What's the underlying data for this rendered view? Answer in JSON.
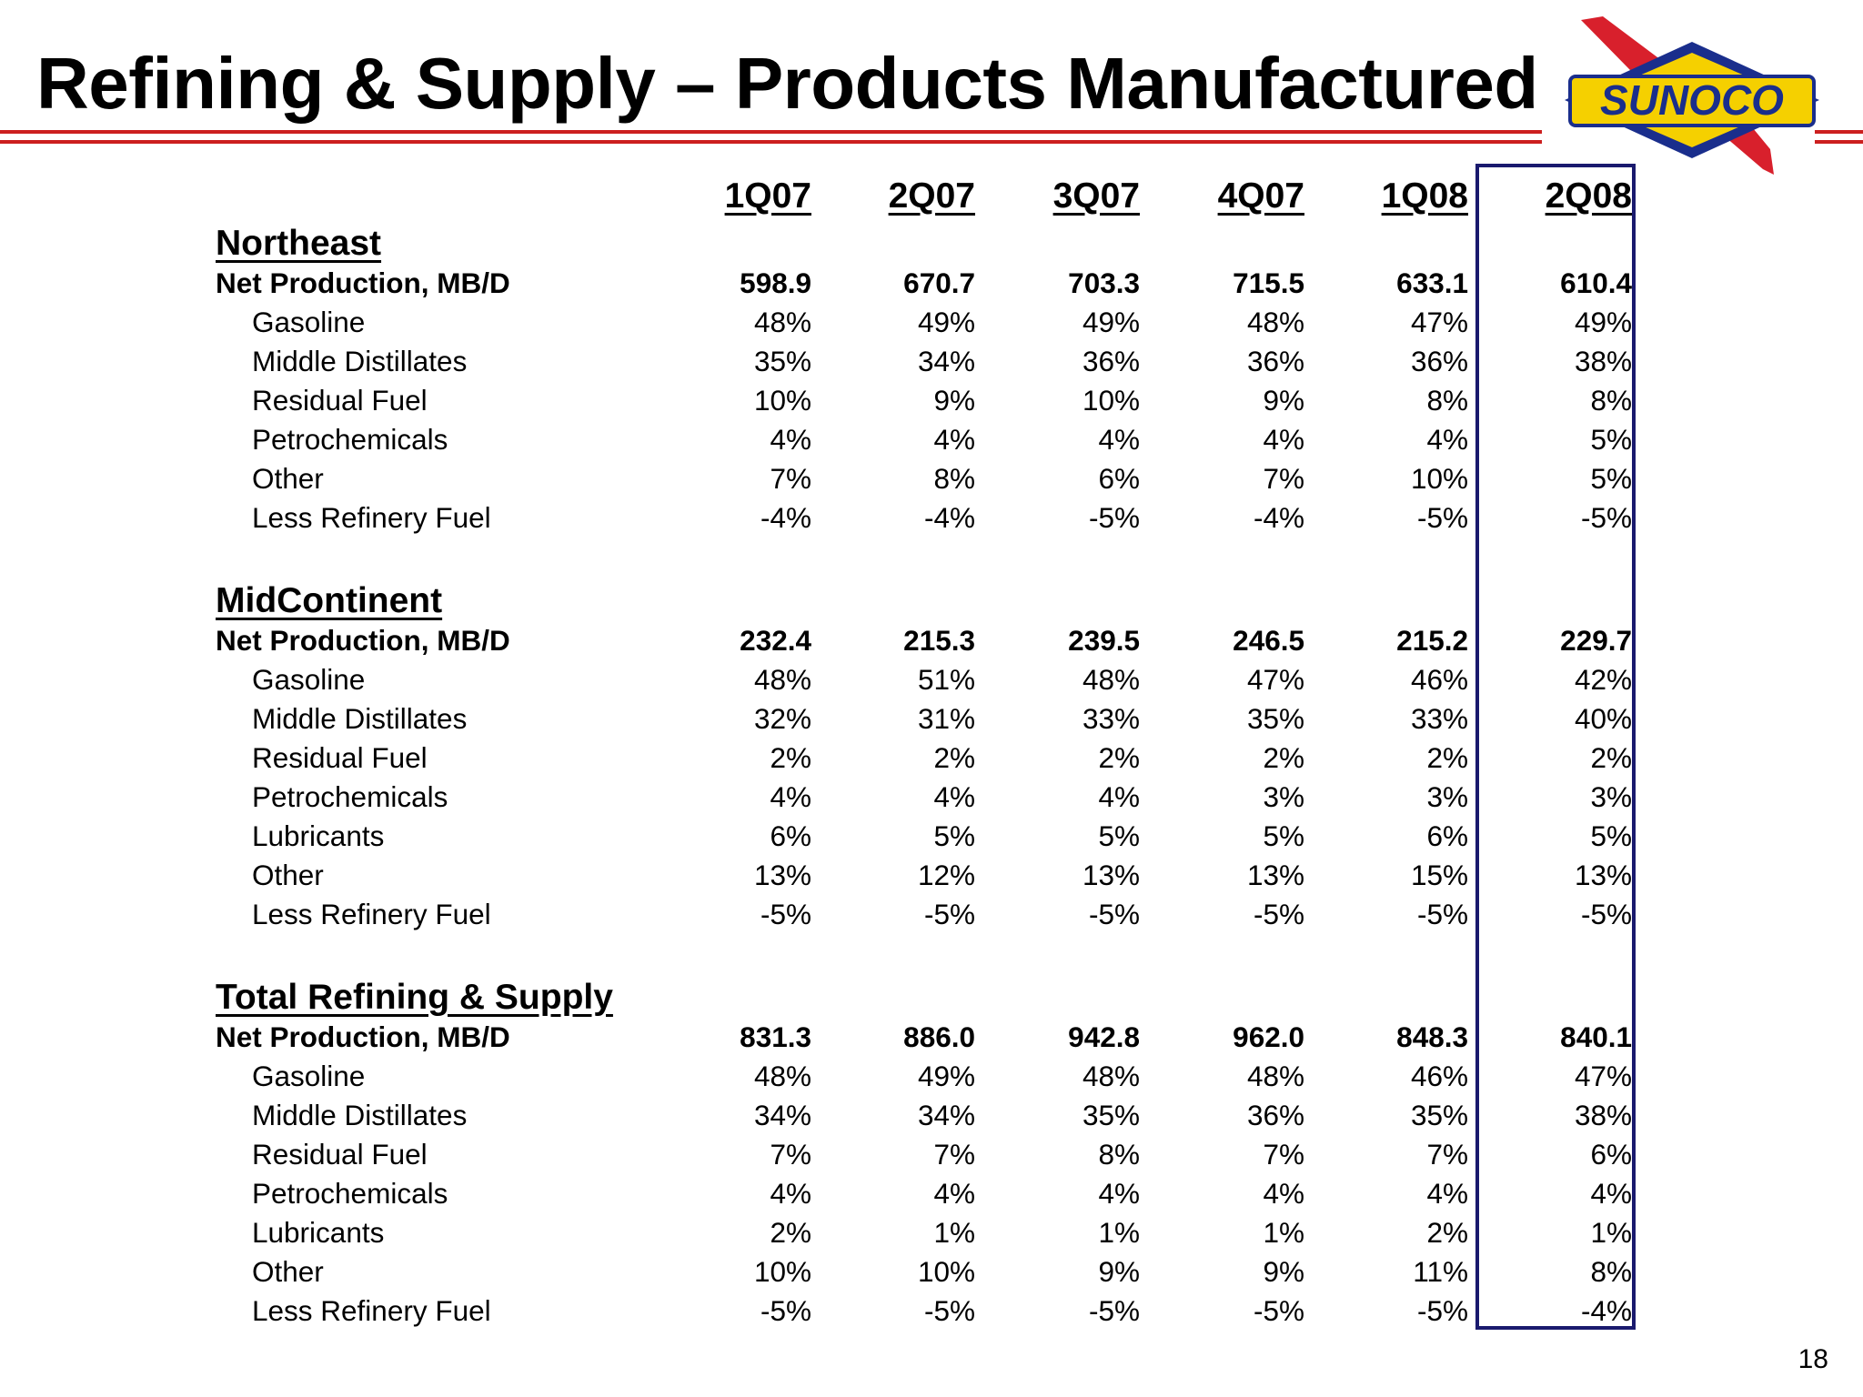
{
  "title": "Refining & Supply – Products Manufactured",
  "logo_text": "SUNOCO",
  "colors": {
    "rule": "#cc1f1f",
    "highlight_border": "#1a1a6e",
    "logo_yellow": "#f5d000",
    "logo_blue": "#1a2e8c",
    "logo_red": "#d8202c"
  },
  "columns": [
    "1Q07",
    "2Q07",
    "3Q07",
    "4Q07",
    "1Q08",
    "2Q08"
  ],
  "sections": [
    {
      "heading": "Northeast",
      "rows": [
        {
          "label": "Net Production, MB/D",
          "bold": true,
          "values": [
            "598.9",
            "670.7",
            "703.3",
            "715.5",
            "633.1",
            "610.4"
          ]
        },
        {
          "label": "Gasoline",
          "values": [
            "48%",
            "49%",
            "49%",
            "48%",
            "47%",
            "49%"
          ]
        },
        {
          "label": "Middle Distillates",
          "values": [
            "35%",
            "34%",
            "36%",
            "36%",
            "36%",
            "38%"
          ]
        },
        {
          "label": "Residual Fuel",
          "values": [
            "10%",
            "9%",
            "10%",
            "9%",
            "8%",
            "8%"
          ]
        },
        {
          "label": "Petrochemicals",
          "values": [
            "4%",
            "4%",
            "4%",
            "4%",
            "4%",
            "5%"
          ]
        },
        {
          "label": "Other",
          "values": [
            "7%",
            "8%",
            "6%",
            "7%",
            "10%",
            "5%"
          ]
        },
        {
          "label": "Less Refinery Fuel",
          "values": [
            "-4%",
            "-4%",
            "-5%",
            "-4%",
            "-5%",
            "-5%"
          ]
        }
      ]
    },
    {
      "heading": "MidContinent",
      "rows": [
        {
          "label": "Net Production, MB/D",
          "bold": true,
          "values": [
            "232.4",
            "215.3",
            "239.5",
            "246.5",
            "215.2",
            "229.7"
          ]
        },
        {
          "label": "Gasoline",
          "values": [
            "48%",
            "51%",
            "48%",
            "47%",
            "46%",
            "42%"
          ]
        },
        {
          "label": "Middle Distillates",
          "values": [
            "32%",
            "31%",
            "33%",
            "35%",
            "33%",
            "40%"
          ]
        },
        {
          "label": "Residual Fuel",
          "values": [
            "2%",
            "2%",
            "2%",
            "2%",
            "2%",
            "2%"
          ]
        },
        {
          "label": "Petrochemicals",
          "values": [
            "4%",
            "4%",
            "4%",
            "3%",
            "3%",
            "3%"
          ]
        },
        {
          "label": "Lubricants",
          "values": [
            "6%",
            "5%",
            "5%",
            "5%",
            "6%",
            "5%"
          ]
        },
        {
          "label": "Other",
          "values": [
            "13%",
            "12%",
            "13%",
            "13%",
            "15%",
            "13%"
          ]
        },
        {
          "label": "Less Refinery Fuel",
          "values": [
            "-5%",
            "-5%",
            "-5%",
            "-5%",
            "-5%",
            "-5%"
          ]
        }
      ]
    },
    {
      "heading": "Total Refining & Supply",
      "rows": [
        {
          "label": "Net Production, MB/D",
          "bold": true,
          "values": [
            "831.3",
            "886.0",
            "942.8",
            "962.0",
            "848.3",
            "840.1"
          ]
        },
        {
          "label": "Gasoline",
          "values": [
            "48%",
            "49%",
            "48%",
            "48%",
            "46%",
            "47%"
          ]
        },
        {
          "label": "Middle Distillates",
          "values": [
            "34%",
            "34%",
            "35%",
            "36%",
            "35%",
            "38%"
          ]
        },
        {
          "label": "Residual Fuel",
          "values": [
            "7%",
            "7%",
            "8%",
            "7%",
            "7%",
            "6%"
          ]
        },
        {
          "label": "Petrochemicals",
          "values": [
            "4%",
            "4%",
            "4%",
            "4%",
            "4%",
            "4%"
          ]
        },
        {
          "label": "Lubricants",
          "values": [
            "2%",
            "1%",
            "1%",
            "1%",
            "2%",
            "1%"
          ]
        },
        {
          "label": "Other",
          "values": [
            "10%",
            "10%",
            "9%",
            "9%",
            "11%",
            "8%"
          ]
        },
        {
          "label": "Less Refinery Fuel",
          "values": [
            "-5%",
            "-5%",
            "-5%",
            "-5%",
            "-5%",
            "-4%"
          ]
        }
      ]
    }
  ],
  "page_number": "18"
}
